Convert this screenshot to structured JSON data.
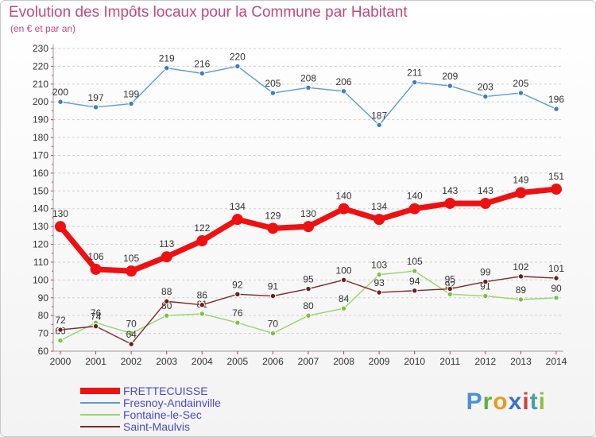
{
  "header": {
    "title": "Evolution des Impôts locaux pour la Commune par Habitant",
    "subtitle": "(en € et par an)"
  },
  "brand": {
    "letters": [
      "P",
      "r",
      "o",
      "x",
      "i",
      "t",
      "i"
    ],
    "colors": [
      "#4a8fd8",
      "#5fb040",
      "#e89a20",
      "#3a6fc8",
      "#d04040",
      "#4aa0a0",
      "#8cbf3f"
    ]
  },
  "chart_data": {
    "type": "line",
    "x": [
      2000,
      2001,
      2002,
      2003,
      2004,
      2005,
      2006,
      2007,
      2008,
      2009,
      2010,
      2011,
      2012,
      2013,
      2014
    ],
    "ylim": [
      60,
      230
    ],
    "yticks": [
      60,
      70,
      80,
      90,
      100,
      110,
      120,
      130,
      140,
      150,
      160,
      170,
      180,
      190,
      200,
      210,
      220,
      230
    ],
    "grid": "horizontal dashed",
    "legend_position": "bottom-left",
    "series": [
      {
        "name": "FRETTECUISSE",
        "color": "#ee1111",
        "marker": "#ee1111",
        "emphasis": true,
        "values": [
          130,
          106,
          105,
          113,
          122,
          134,
          129,
          130,
          140,
          134,
          140,
          143,
          143,
          149,
          151
        ]
      },
      {
        "name": "Fresnoy-Andainville",
        "color": "#5b9bd5",
        "marker": "#3a7fc0",
        "emphasis": false,
        "values": [
          200,
          197,
          199,
          219,
          216,
          220,
          205,
          208,
          206,
          187,
          211,
          209,
          203,
          205,
          196
        ]
      },
      {
        "name": "Fontaine-le-Sec",
        "color": "#9ad36a",
        "marker": "#7cc242",
        "emphasis": false,
        "values": [
          66,
          76,
          70,
          80,
          81,
          76,
          70,
          80,
          84,
          103,
          105,
          92,
          91,
          89,
          90
        ]
      },
      {
        "name": "Saint-Maulvis",
        "color": "#7a2a2a",
        "marker": "#6a1f1f",
        "emphasis": false,
        "values": [
          72,
          74,
          64,
          88,
          86,
          92,
          91,
          95,
          100,
          93,
          94,
          95,
          99,
          102,
          101
        ]
      }
    ]
  }
}
